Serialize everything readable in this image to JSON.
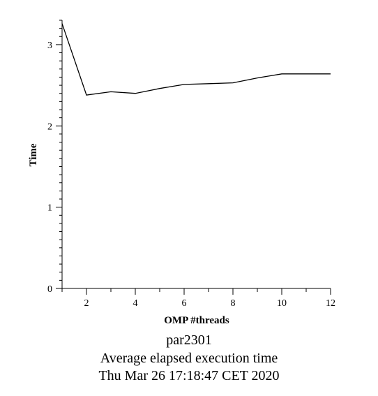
{
  "chart_data": {
    "type": "line",
    "title": "par2301",
    "subtitle": "Average elapsed execution time",
    "timestamp": "Thu Mar 26 17:18:47 CET 2020",
    "xlabel": "OMP #threads",
    "ylabel": "Time",
    "xlim": [
      1,
      12
    ],
    "ylim": [
      0,
      3.3
    ],
    "xticks": [
      2,
      4,
      6,
      8,
      10,
      12
    ],
    "yticks": [
      0,
      1,
      2,
      3
    ],
    "grid": false,
    "series": [
      {
        "x": [
          1,
          2,
          3,
          4,
          5,
          6,
          7,
          8,
          9,
          10,
          11,
          12
        ],
        "y": [
          3.26,
          2.38,
          2.42,
          2.4,
          2.46,
          2.51,
          2.52,
          2.53,
          2.59,
          2.64,
          2.64,
          2.64
        ]
      }
    ]
  }
}
